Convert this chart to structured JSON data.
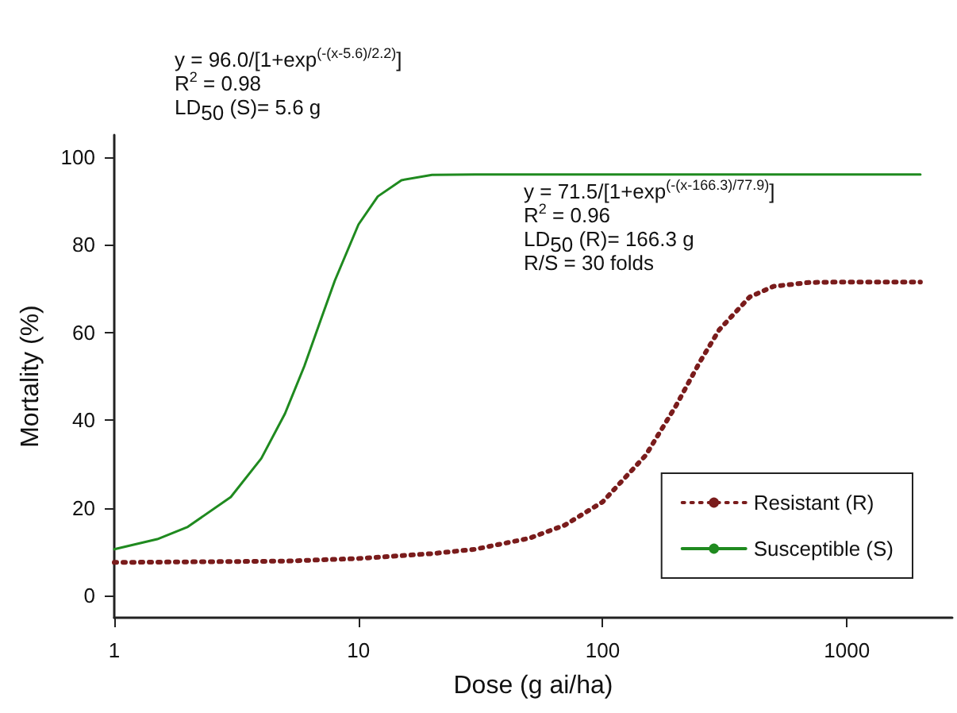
{
  "chart_data": {
    "type": "line",
    "xlabel": "Dose (g ai/ha)",
    "ylabel": "Mortality (%)",
    "series": [
      {
        "name": "Resistant (R)",
        "color": "#7a1c1c",
        "line_style": "dotted",
        "x": [
          1,
          3,
          5,
          10,
          20,
          30,
          50,
          70,
          100,
          150,
          200,
          250,
          300,
          400,
          500,
          700,
          1000,
          2000
        ],
        "values": [
          7.6,
          7.8,
          7.9,
          8.5,
          9.6,
          10.6,
          13.1,
          16.1,
          21.4,
          32.0,
          43.4,
          53.3,
          60.6,
          68.1,
          70.5,
          71.4,
          71.5,
          71.5
        ]
      },
      {
        "name": "Susceptible (S)",
        "color": "#1f8a1f",
        "line_style": "solid",
        "x": [
          1,
          1.5,
          2,
          3,
          4,
          5,
          6,
          7,
          8,
          10,
          12,
          15,
          20,
          30,
          100,
          1000,
          2000
        ],
        "values": [
          10.6,
          12.9,
          15.7,
          22.5,
          31.3,
          41.5,
          52.3,
          62.8,
          71.8,
          84.6,
          91.0,
          94.7,
          95.9,
          96.0,
          96.0,
          96.0,
          96.0
        ]
      }
    ],
    "log": "x",
    "xlim": [
      1,
      2700
    ],
    "xticks": [
      1,
      10,
      100,
      1000
    ],
    "ylim": [
      -5,
      105
    ],
    "yticks": [
      0,
      20,
      40,
      60,
      80,
      100
    ],
    "grid": false,
    "legend": "bottom right",
    "marker": "none",
    "annotations": [
      "y = 96.0/[1+exp$^{(-(x-5.6)/2.2)}$]\nR$^{2}$ = 0.98\nLD$_{50}$ (S)= 5.6 g",
      "y = 71.5/[1+exp$^{(-(x-166.3)/77.9)}$]\nR$^{2}$ = 0.96\nLD$_{50}$ (R)= 166.3 g\nR/S = 30 folds"
    ]
  }
}
